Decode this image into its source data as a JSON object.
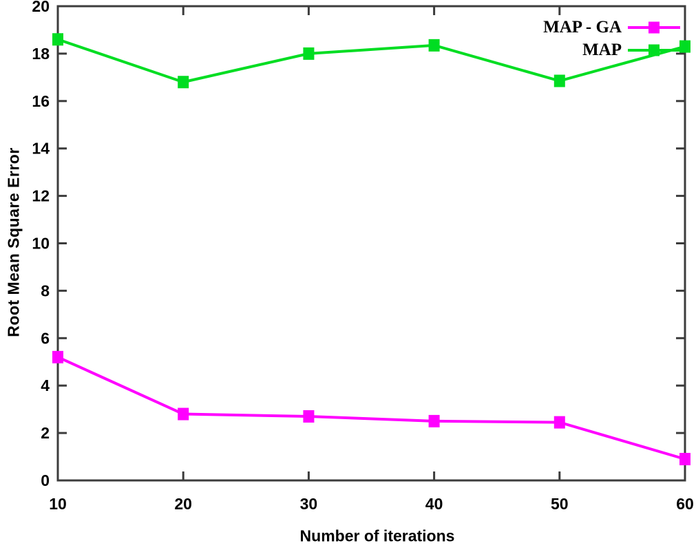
{
  "figure": {
    "background": "#ffffff",
    "frame_color": "#3c3c3c",
    "text_color": "#000000"
  },
  "chart_data": {
    "type": "line",
    "x": [
      10,
      20,
      30,
      40,
      50,
      60
    ],
    "series": [
      {
        "name": "MAP - GA",
        "color": "#ff00ff",
        "marker": "square",
        "values": [
          5.2,
          2.8,
          2.7,
          2.5,
          2.45,
          0.9
        ]
      },
      {
        "name": "MAP",
        "color": "#00dd22",
        "marker": "square",
        "values": [
          18.6,
          16.8,
          18.0,
          18.35,
          16.85,
          18.3
        ]
      }
    ],
    "xlabel": "Number of iterations",
    "ylabel": "Root Mean Square Error",
    "xlim": [
      10,
      60
    ],
    "ylim": [
      0,
      20
    ],
    "x_ticks": [
      10,
      20,
      30,
      40,
      50,
      60
    ],
    "y_ticks": [
      0,
      2,
      4,
      6,
      8,
      10,
      12,
      14,
      16,
      18,
      20
    ],
    "grid": false,
    "legend_position": "top-right"
  }
}
